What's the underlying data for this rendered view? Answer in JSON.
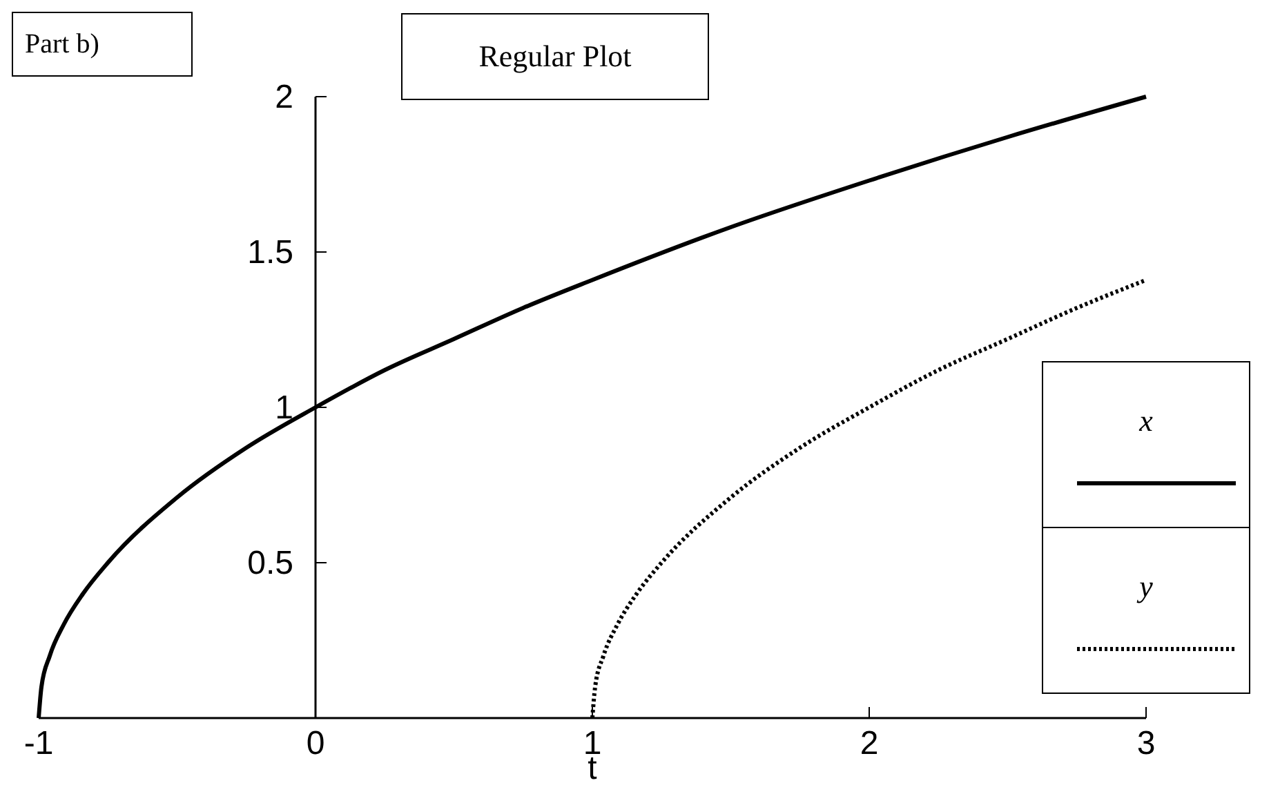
{
  "chart_data": {
    "type": "line",
    "title": "Regular Plot",
    "xlabel": "t",
    "annotations": [
      "Part b)"
    ],
    "xlim": [
      -1,
      3
    ],
    "xticks": [
      -1,
      0,
      1,
      2,
      3
    ],
    "ylim": [
      0,
      2
    ],
    "yticks": [
      0.5,
      1,
      1.5,
      2
    ],
    "grid": false,
    "legend": "right",
    "marker": "none",
    "series": [
      {
        "name": "x",
        "color": "#000000",
        "line_style": "solid",
        "x": [
          -1,
          -0.99,
          -0.96,
          -0.91,
          -0.84,
          -0.75,
          -0.5,
          -0.25,
          0,
          0.25,
          0.5,
          0.75,
          1,
          1.5,
          2,
          2.5,
          3
        ],
        "values": [
          0,
          0.1,
          0.2,
          0.3,
          0.4,
          0.5,
          0.71,
          0.87,
          1,
          1.12,
          1.22,
          1.32,
          1.41,
          1.58,
          1.73,
          1.87,
          2
        ]
      },
      {
        "name": "y",
        "color": "#000000",
        "line_style": "dotted",
        "x": [
          1,
          1.01,
          1.04,
          1.09,
          1.16,
          1.25,
          1.5,
          1.75,
          2,
          2.25,
          2.5,
          2.75,
          3
        ],
        "values": [
          0,
          0.1,
          0.2,
          0.3,
          0.4,
          0.5,
          0.71,
          0.87,
          1,
          1.12,
          1.22,
          1.32,
          1.41
        ]
      }
    ]
  }
}
